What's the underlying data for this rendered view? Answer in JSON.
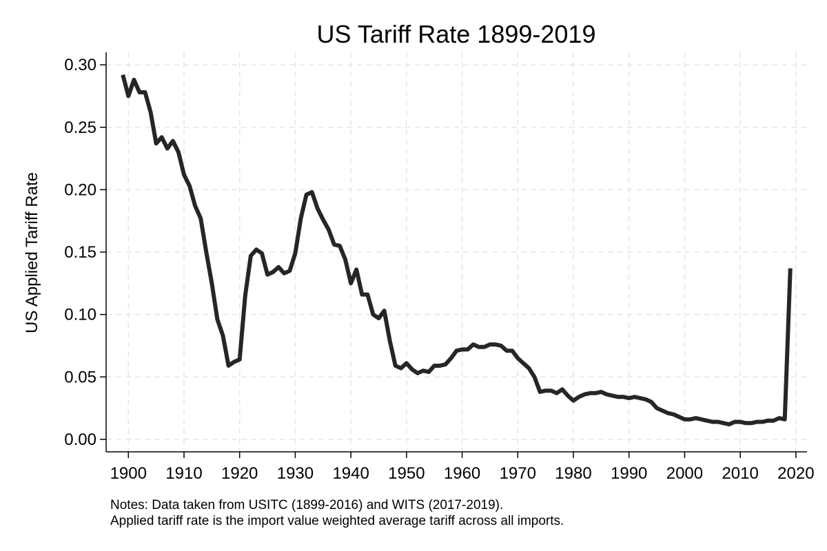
{
  "chart_data": {
    "type": "line",
    "title": "US Tariff Rate 1899-2019",
    "ylabel": "US Applied Tariff Rate",
    "xlabel": "",
    "xlim": [
      1896,
      2022
    ],
    "ylim": [
      -0.01,
      0.31
    ],
    "x_ticks": [
      1900,
      1910,
      1920,
      1930,
      1940,
      1950,
      1960,
      1970,
      1980,
      1990,
      2000,
      2010,
      2020
    ],
    "x_tick_labels": [
      "1900",
      "1910",
      "1920",
      "1930",
      "1940",
      "1950",
      "1960",
      "1970",
      "1980",
      "1990",
      "2000",
      "2010",
      "2020"
    ],
    "y_ticks": [
      0,
      0.05,
      0.1,
      0.15,
      0.2,
      0.25,
      0.3
    ],
    "y_tick_labels": [
      "0.00",
      "0.05",
      "0.10",
      "0.15",
      "0.20",
      "0.25",
      "0.30"
    ],
    "grid": true,
    "grid_style": "dashed",
    "line_color": "#262626",
    "series": [
      {
        "x": [
          1899,
          1900,
          1901,
          1902,
          1903,
          1904,
          1905,
          1906,
          1907,
          1908,
          1909,
          1910,
          1911,
          1912,
          1913,
          1914,
          1915,
          1916,
          1917,
          1918,
          1919,
          1920,
          1921,
          1922,
          1923,
          1924,
          1925,
          1926,
          1927,
          1928,
          1929,
          1930,
          1931,
          1932,
          1933,
          1934,
          1935,
          1936,
          1937,
          1938,
          1939,
          1940,
          1941,
          1942,
          1943,
          1944,
          1945,
          1946,
          1947,
          1948,
          1949,
          1950,
          1951,
          1952,
          1953,
          1954,
          1955,
          1956,
          1957,
          1958,
          1959,
          1960,
          1961,
          1962,
          1963,
          1964,
          1965,
          1966,
          1967,
          1968,
          1969,
          1970,
          1971,
          1972,
          1973,
          1974,
          1975,
          1976,
          1977,
          1978,
          1979,
          1980,
          1981,
          1982,
          1983,
          1984,
          1985,
          1986,
          1987,
          1988,
          1989,
          1990,
          1991,
          1992,
          1993,
          1994,
          1995,
          1996,
          1997,
          1998,
          1999,
          2000,
          2001,
          2002,
          2003,
          2004,
          2005,
          2006,
          2007,
          2008,
          2009,
          2010,
          2011,
          2012,
          2013,
          2014,
          2015,
          2016,
          2017,
          2018,
          2019
        ],
        "y": [
          0.292,
          0.275,
          0.288,
          0.278,
          0.278,
          0.262,
          0.237,
          0.242,
          0.233,
          0.239,
          0.23,
          0.212,
          0.203,
          0.187,
          0.177,
          0.15,
          0.125,
          0.096,
          0.083,
          0.059,
          0.062,
          0.064,
          0.115,
          0.147,
          0.152,
          0.149,
          0.132,
          0.134,
          0.138,
          0.133,
          0.135,
          0.149,
          0.177,
          0.196,
          0.198,
          0.185,
          0.176,
          0.168,
          0.156,
          0.155,
          0.144,
          0.125,
          0.136,
          0.116,
          0.116,
          0.1,
          0.097,
          0.103,
          0.079,
          0.059,
          0.057,
          0.061,
          0.056,
          0.053,
          0.055,
          0.054,
          0.059,
          0.059,
          0.06,
          0.065,
          0.071,
          0.072,
          0.072,
          0.076,
          0.074,
          0.074,
          0.076,
          0.076,
          0.075,
          0.071,
          0.071,
          0.065,
          0.061,
          0.057,
          0.05,
          0.038,
          0.039,
          0.039,
          0.037,
          0.04,
          0.035,
          0.031,
          0.034,
          0.036,
          0.037,
          0.037,
          0.038,
          0.036,
          0.035,
          0.034,
          0.034,
          0.033,
          0.034,
          0.033,
          0.032,
          0.03,
          0.025,
          0.023,
          0.021,
          0.02,
          0.018,
          0.016,
          0.016,
          0.017,
          0.016,
          0.015,
          0.014,
          0.014,
          0.013,
          0.012,
          0.014,
          0.014,
          0.013,
          0.013,
          0.014,
          0.014,
          0.015,
          0.015,
          0.017,
          0.016,
          0.137
        ]
      }
    ],
    "notes": [
      "Notes: Data taken from USITC (1899-2016) and WITS (2017-2019).",
      "Applied tariff rate is the import value weighted average tariff across all imports."
    ]
  }
}
